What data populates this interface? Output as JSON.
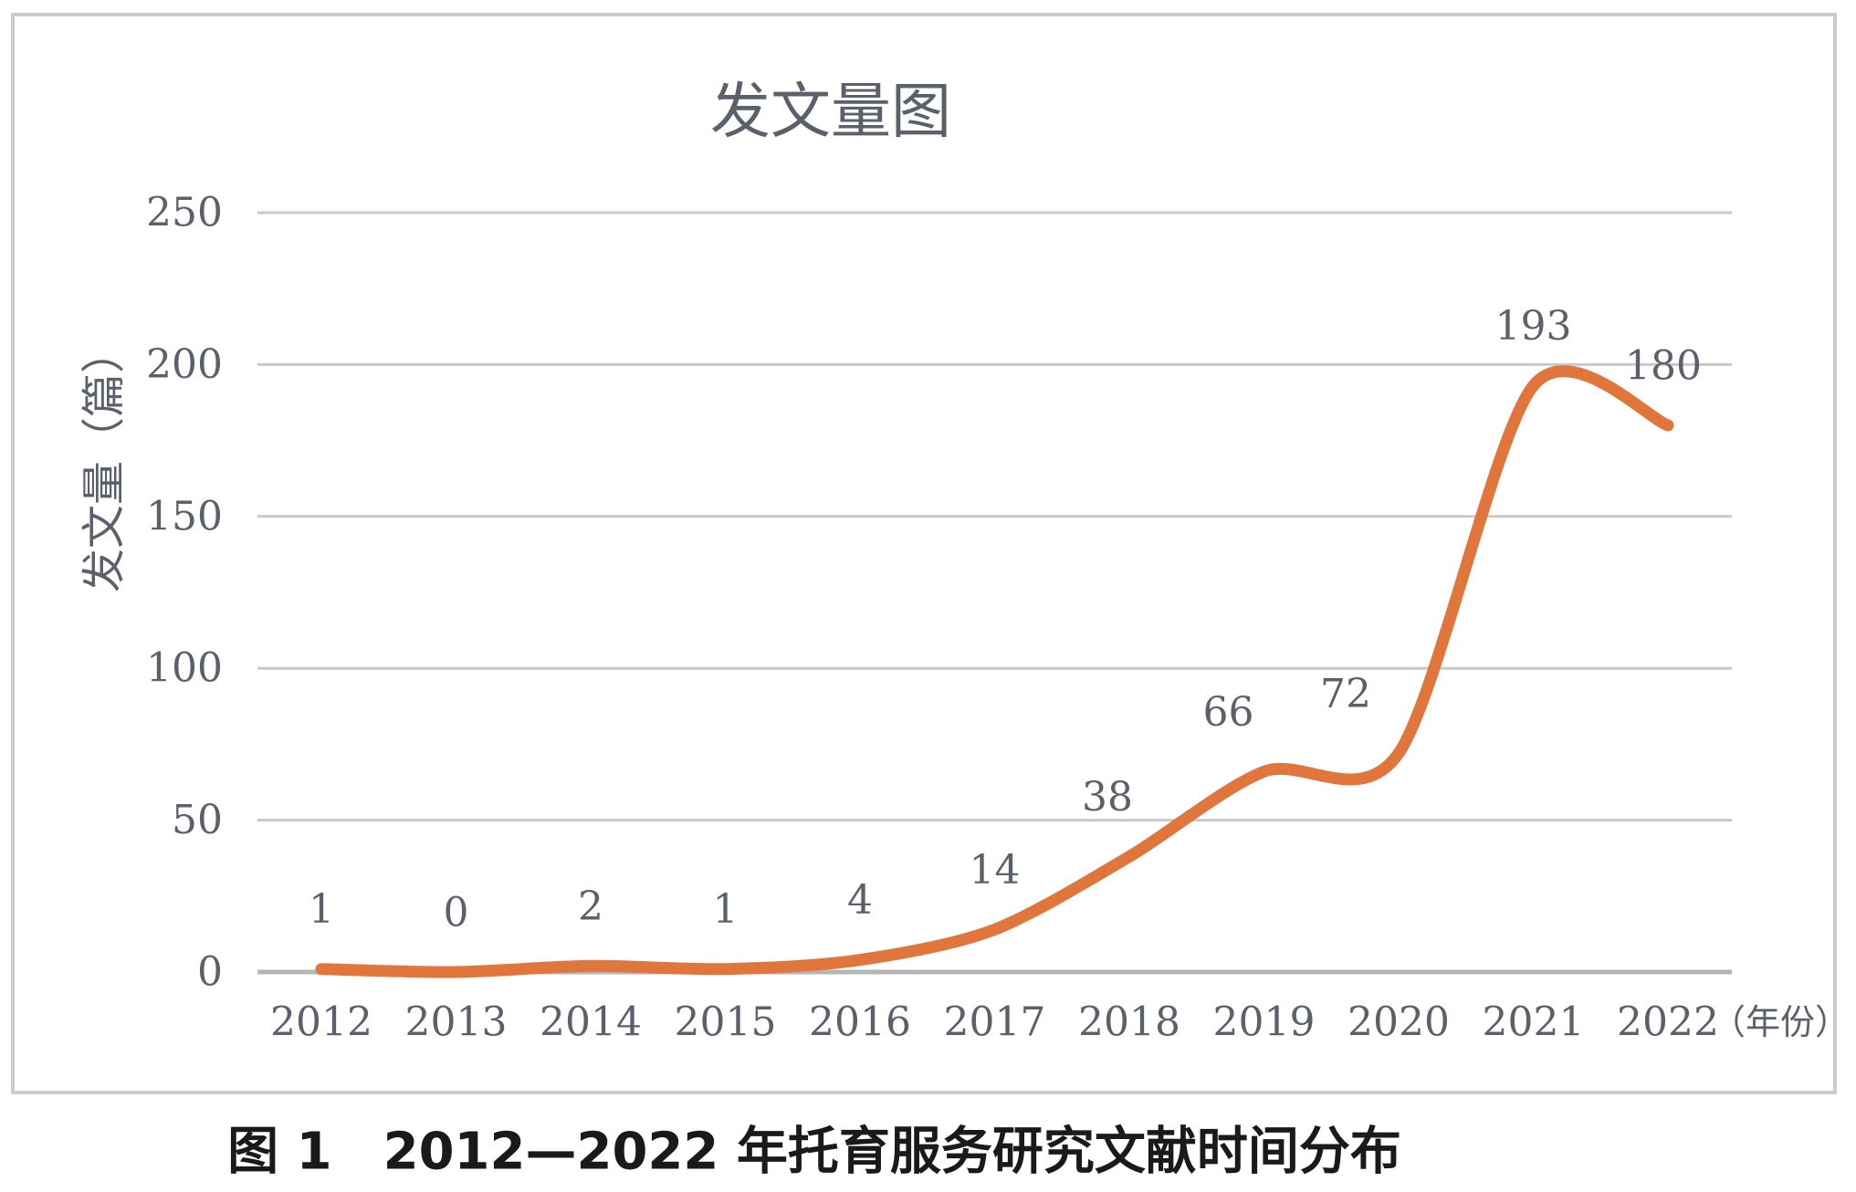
{
  "figure": {
    "caption": "图 1　2012—2022 年托育服务研究文献时间分布"
  },
  "chart_data": {
    "type": "line",
    "title": "发文量图",
    "ylabel": "发文量（篇）",
    "xlabel": "",
    "x_axis_unit": "（年份）",
    "categories": [
      "2012",
      "2013",
      "2014",
      "2015",
      "2016",
      "2017",
      "2018",
      "2019",
      "2020",
      "2021",
      "2022"
    ],
    "series": [
      {
        "name": "发文量",
        "values": [
          1,
          0,
          2,
          1,
          4,
          14,
          38,
          66,
          72,
          193,
          180
        ]
      }
    ],
    "data_labels": [
      "1",
      "0",
      "2",
      "1",
      "4",
      "14",
      "38",
      "66",
      "72",
      "193",
      "180"
    ],
    "ylim": [
      0,
      250
    ],
    "yticks": [
      0,
      50,
      100,
      150,
      200,
      250
    ],
    "grid": "horizontal",
    "legend": "none",
    "line_smoothed": true,
    "colors": {
      "line": "#E1763C",
      "label": "#5B616B",
      "grid": "#C9C9C9",
      "axis": "#B5B5B5",
      "border": "#CCCCCC",
      "caption": "#1A1A1A"
    }
  }
}
